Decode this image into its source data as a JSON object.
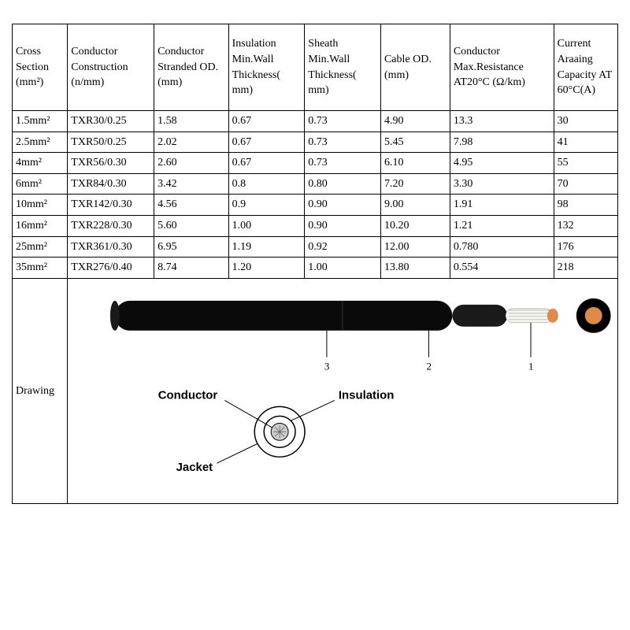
{
  "columns": [
    "Cross Section (mm²)",
    "Conductor Construction (n/mm)",
    "Conductor Stranded OD.(mm)",
    "Insulation Min.Wall Thickness( mm)",
    "Sheath Min.Wall Thickness( mm)",
    "Cable OD.(mm)",
    "Conductor Max.Resistance AT20°C (Ω/km)",
    "Current Araaing Capacity AT 60°C(A)"
  ],
  "rows": [
    [
      "1.5mm²",
      "TXR30/0.25",
      "1.58",
      "0.67",
      "0.73",
      "4.90",
      "13.3",
      "30"
    ],
    [
      "2.5mm²",
      "TXR50/0.25",
      "2.02",
      "0.67",
      "0.73",
      "5.45",
      "7.98",
      "41"
    ],
    [
      "4mm²",
      "TXR56/0.30",
      "2.60",
      "0.67",
      "0.73",
      "6.10",
      "4.95",
      "55"
    ],
    [
      "6mm²",
      "TXR84/0.30",
      "3.42",
      "0.8",
      "0.80",
      "7.20",
      "3.30",
      "70"
    ],
    [
      "10mm²",
      "TXR142/0.30",
      "4.56",
      "0.9",
      "0.90",
      "9.00",
      "1.91",
      "98"
    ],
    [
      "16mm²",
      "TXR228/0.30",
      "5.60",
      "1.00",
      "0.90",
      "10.20",
      "1.21",
      "132"
    ],
    [
      "25mm²",
      "TXR361/0.30",
      "6.95",
      "1.19",
      "0.92",
      "12.00",
      "0.780",
      "176"
    ],
    [
      "35mm²",
      "TXR276/0.40",
      "8.74",
      "1.20",
      "1.00",
      "13.80",
      "0.554",
      "218"
    ]
  ],
  "drawing": {
    "row_label": "Drawing",
    "callout_1": "1",
    "callout_2": "2",
    "callout_3": "3",
    "label_conductor": "Conductor",
    "label_insulation": "Insulation",
    "label_jacket": "Jacket",
    "jacket_color": "#0a0a0a",
    "insulation_color": "#1a1a1a",
    "conductor_fill": "#f5f5f0",
    "conductor_tip": "#e08a4a",
    "end_ring_outer": "#000000",
    "end_ring_inner": "#e08a4a",
    "diagram_stroke": "#000000"
  },
  "styling": {
    "border_color": "#000000",
    "background": "#ffffff",
    "font_family": "Times New Roman"
  }
}
